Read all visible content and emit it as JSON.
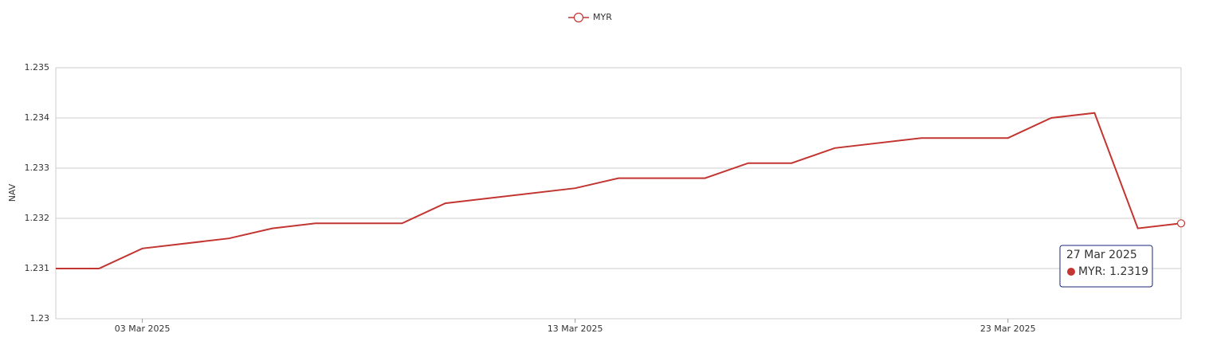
{
  "chart_data": {
    "type": "line",
    "x": [
      "2025-03-01",
      "2025-03-02",
      "2025-03-03",
      "2025-03-05",
      "2025-03-06",
      "2025-03-07",
      "2025-03-09",
      "2025-03-10",
      "2025-03-13",
      "2025-03-14",
      "2025-03-16",
      "2025-03-17",
      "2025-03-18",
      "2025-03-19",
      "2025-03-21",
      "2025-03-23",
      "2025-03-24",
      "2025-03-25",
      "2025-03-26",
      "2025-03-27"
    ],
    "series": [
      {
        "name": "MYR",
        "color": "#c23531",
        "values": [
          1.231,
          1.231,
          1.2314,
          1.2316,
          1.2318,
          1.2319,
          1.2319,
          1.2323,
          1.2326,
          1.2328,
          1.2328,
          1.2331,
          1.2331,
          1.2334,
          1.2336,
          1.2336,
          1.234,
          1.2341,
          1.2318,
          1.2319
        ]
      }
    ],
    "xlim": [
      "2025-03-01",
      "2025-03-27"
    ],
    "xticks": [
      {
        "value": "2025-03-03",
        "label": "03 Mar 2025"
      },
      {
        "value": "2025-03-13",
        "label": "13 Mar 2025"
      },
      {
        "value": "2025-03-23",
        "label": "23 Mar 2025"
      }
    ],
    "ylim": [
      1.23,
      1.235
    ],
    "yticks": [
      1.23,
      1.231,
      1.232,
      1.233,
      1.234,
      1.235
    ],
    "y_label": "NAV",
    "grid": true,
    "legend": "top",
    "tooltip": {
      "title": "27 Mar 2025",
      "text": "MYR: 1.2319",
      "border": "#1a237e"
    }
  }
}
